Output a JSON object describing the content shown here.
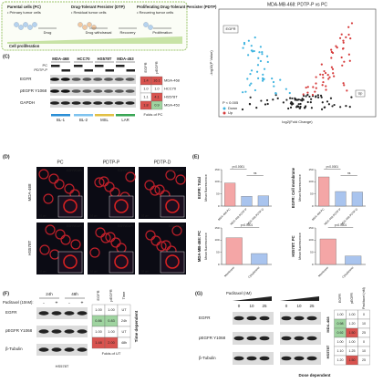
{
  "panel_a": {
    "stages": [
      {
        "title": "Parental cells (PC)",
        "note": "• Primary tumor cells"
      },
      {
        "title": "Drug-Tolerant Persister (DTP)",
        "note": "• Residual tumor cells"
      },
      {
        "title": "Proliferating Drug-Tolerant Persister (PDTP)",
        "note": "• Recurring tumor cells"
      }
    ],
    "arrows": [
      "Drug",
      "Drug withdrawal",
      "Recovery",
      "Proliferation"
    ],
    "axis": "Cell proliferation"
  },
  "panel_b": {
    "title": "MDA-MB-468: PDTP-P vs PC",
    "gene": "EGFR",
    "tag": "Up",
    "y_label": "-log10(P Value)",
    "x_label": "log2(Fold Change)",
    "legend": {
      "title": "P < 0.005",
      "items": [
        "Down",
        "Up"
      ]
    }
  },
  "panel_c": {
    "label": "(C)",
    "lines": [
      "MDA-468",
      "HCC70",
      "HS578T",
      "MDA-453"
    ],
    "conditions": [
      "PC",
      "PDTP-P"
    ],
    "blots": [
      "EGFR",
      "pEGFR Y1068",
      "GAPDH"
    ],
    "subtypes": [
      "BL-1",
      "BL-2",
      "MSL",
      "LAR"
    ],
    "heat_headers": [
      "EGFR",
      "pEGFR"
    ],
    "heat_rows": [
      [
        "1.4",
        "16.1"
      ],
      [
        "1.0",
        "1.0"
      ],
      [
        "1.1",
        "4.1"
      ],
      [
        "1.8",
        "0.9"
      ]
    ],
    "footer": "Folds of PC"
  },
  "panel_d": {
    "label": "(D)",
    "columns": [
      "PC",
      "PDTP-P",
      "PDTP-D"
    ],
    "rows": [
      "MDA-468",
      "HS578T"
    ],
    "stain": "EGFR/DAPI",
    "scale": "10 µm"
  },
  "panel_e": {
    "label": "(E)",
    "charts": [
      {
        "title": "EGFR: Total",
        "y_label": "Mean fluorescence",
        "categories": [
          "MDA-468 PC",
          "MDA-468 PDTP-P",
          "MDA-468 PDTP-D"
        ],
        "values": [
          95,
          40,
          42
        ],
        "colors": [
          "#f4a6a6",
          "#a9c4ee",
          "#a9c4ee"
        ],
        "ylim": [
          0,
          150
        ],
        "yticks": [
          0,
          50,
          100,
          150
        ],
        "annotations": [
          "p<0.0001",
          "ns"
        ]
      },
      {
        "title": "EGFR: Cell membrane",
        "y_label": "Mean fluorescence",
        "categories": [
          "MDA-468 PC",
          "MDA-468 PDTP-P",
          "MDA-468 PDTP-D"
        ],
        "values": [
          120,
          60,
          58
        ],
        "colors": [
          "#f4a6a6",
          "#a9c4ee",
          "#a9c4ee"
        ],
        "ylim": [
          0,
          150
        ],
        "yticks": [
          0,
          50,
          100,
          150
        ],
        "annotations": [
          "p<0.0001",
          "ns"
        ]
      },
      {
        "title": "MDA-MB-468: PC",
        "y_label": "Mean fluorescence",
        "categories": [
          "Membrane",
          "Cytoplasmic"
        ],
        "values": [
          110,
          45
        ],
        "colors": [
          "#f4a6a6",
          "#a9c4ee"
        ],
        "ylim": [
          0,
          150
        ],
        "yticks": [
          0,
          50,
          100,
          150
        ],
        "annotations": [
          "p<0.0001"
        ]
      },
      {
        "title": "HS578T: PC",
        "y_label": "Mean fluorescence",
        "categories": [
          "Membrane",
          "Cytoplasmic"
        ],
        "values": [
          105,
          35
        ],
        "colors": [
          "#f4a6a6",
          "#a9c4ee"
        ],
        "ylim": [
          0,
          150
        ],
        "yticks": [
          0,
          50,
          100,
          150
        ],
        "annotations": [
          "p<0.0001"
        ]
      }
    ]
  },
  "panel_f": {
    "label": "(F)",
    "treatment": "Paclitaxel (10nM):",
    "times": [
      "24h",
      "48h"
    ],
    "doses": [
      "-",
      "+",
      "-",
      "+"
    ],
    "blots": [
      "EGFR",
      "pEGFR Y1068",
      "β-Tubulin"
    ],
    "table_headers": [
      "EGFR",
      "pEGFR",
      "Time"
    ],
    "table_rows": [
      [
        "1.00",
        "1.00",
        "UT"
      ],
      [
        "0.86",
        "0.83",
        "24h"
      ],
      [
        "1.00",
        "1.00",
        "UT"
      ],
      [
        "1.48",
        "2.00",
        "48h"
      ]
    ],
    "side": "Time dependent",
    "footer": "Folds of UT",
    "cell": "HS578T"
  },
  "panel_g": {
    "label": "(G)",
    "treatment": "Paclitaxel (nM)",
    "doses": [
      "0",
      "10",
      "25",
      "0",
      "10",
      "25"
    ],
    "blots": [
      "EGFR",
      "pEGFR Y1068",
      "β-Tubulin"
    ],
    "lines": [
      "MDA-468",
      "HS578T"
    ],
    "table_headers": [
      "EGFR",
      "pEGFR",
      "Paclitaxel (nM)"
    ],
    "table_rows": [
      [
        "1.00",
        "1.00",
        "0"
      ],
      [
        "0.98",
        "1.20",
        "10"
      ],
      [
        "0.92",
        "1.50",
        "25"
      ],
      [
        "1.00",
        "1.00",
        "0"
      ],
      [
        "1.10",
        "1.25",
        "10"
      ],
      [
        "1.20",
        "1.50",
        "25"
      ]
    ],
    "side": "Dose dependent"
  }
}
